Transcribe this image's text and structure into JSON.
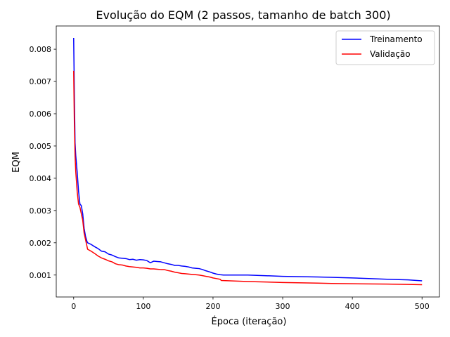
{
  "chart_data": {
    "type": "line",
    "title": "Evolução do EQM (2 passos, tamanho de batch 300)",
    "xlabel": "Época (iteração)",
    "ylabel": "EQM",
    "xlim": [
      -25,
      525
    ],
    "ylim": [
      0.00032,
      0.00872
    ],
    "xticks": [
      0,
      100,
      200,
      300,
      400,
      500
    ],
    "yticks": [
      0.001,
      0.002,
      0.003,
      0.004,
      0.005,
      0.006,
      0.007,
      0.008
    ],
    "ytick_labels": [
      "0.001",
      "0.002",
      "0.003",
      "0.004",
      "0.005",
      "0.006",
      "0.007",
      "0.008"
    ],
    "grid": false,
    "legend_position": "top-right",
    "series": [
      {
        "name": "Treinamento",
        "color": "#0000ff",
        "points": [
          [
            0,
            0.00835
          ],
          [
            1,
            0.0066
          ],
          [
            2,
            0.0051
          ],
          [
            3,
            0.0047
          ],
          [
            5,
            0.0042
          ],
          [
            7,
            0.0036
          ],
          [
            9,
            0.0032
          ],
          [
            11,
            0.00315
          ],
          [
            13,
            0.0029
          ],
          [
            15,
            0.00245
          ],
          [
            17,
            0.0022
          ],
          [
            19,
            0.00205
          ],
          [
            20,
            0.002
          ],
          [
            25,
            0.00195
          ],
          [
            30,
            0.00188
          ],
          [
            35,
            0.00182
          ],
          [
            40,
            0.00174
          ],
          [
            45,
            0.00172
          ],
          [
            50,
            0.00165
          ],
          [
            55,
            0.00162
          ],
          [
            60,
            0.00157
          ],
          [
            65,
            0.00153
          ],
          [
            70,
            0.00152
          ],
          [
            75,
            0.00151
          ],
          [
            80,
            0.00148
          ],
          [
            85,
            0.00149
          ],
          [
            90,
            0.00146
          ],
          [
            95,
            0.00148
          ],
          [
            100,
            0.00147
          ],
          [
            105,
            0.00145
          ],
          [
            110,
            0.00138
          ],
          [
            115,
            0.00143
          ],
          [
            120,
            0.00142
          ],
          [
            125,
            0.00141
          ],
          [
            130,
            0.00138
          ],
          [
            135,
            0.00135
          ],
          [
            140,
            0.00133
          ],
          [
            145,
            0.0013
          ],
          [
            150,
            0.0013
          ],
          [
            155,
            0.00128
          ],
          [
            160,
            0.00127
          ],
          [
            165,
            0.00125
          ],
          [
            170,
            0.00122
          ],
          [
            175,
            0.00121
          ],
          [
            180,
            0.0012
          ],
          [
            185,
            0.00117
          ],
          [
            190,
            0.00113
          ],
          [
            195,
            0.0011
          ],
          [
            200,
            0.00106
          ],
          [
            205,
            0.00103
          ],
          [
            210,
            0.00101
          ],
          [
            215,
            0.001
          ],
          [
            250,
            0.001
          ],
          [
            300,
            0.00096
          ],
          [
            350,
            0.00094
          ],
          [
            370,
            0.00093
          ],
          [
            400,
            0.00091
          ],
          [
            450,
            0.00087
          ],
          [
            480,
            0.00085
          ],
          [
            500,
            0.00082
          ]
        ]
      },
      {
        "name": "Validação",
        "color": "#ff0000",
        "points": [
          [
            0,
            0.00733
          ],
          [
            1,
            0.0057
          ],
          [
            2,
            0.0047
          ],
          [
            3,
            0.0042
          ],
          [
            5,
            0.0036
          ],
          [
            7,
            0.0032
          ],
          [
            9,
            0.0031
          ],
          [
            11,
            0.0029
          ],
          [
            13,
            0.0027
          ],
          [
            15,
            0.0023
          ],
          [
            17,
            0.0021
          ],
          [
            19,
            0.0019
          ],
          [
            20,
            0.0018
          ],
          [
            25,
            0.00174
          ],
          [
            30,
            0.00167
          ],
          [
            35,
            0.00159
          ],
          [
            40,
            0.00153
          ],
          [
            45,
            0.00149
          ],
          [
            50,
            0.00144
          ],
          [
            55,
            0.00141
          ],
          [
            60,
            0.00135
          ],
          [
            65,
            0.00132
          ],
          [
            70,
            0.00131
          ],
          [
            75,
            0.00128
          ],
          [
            80,
            0.00126
          ],
          [
            85,
            0.00125
          ],
          [
            90,
            0.00124
          ],
          [
            95,
            0.00122
          ],
          [
            100,
            0.00122
          ],
          [
            105,
            0.00121
          ],
          [
            110,
            0.00119
          ],
          [
            115,
            0.00119
          ],
          [
            120,
            0.00118
          ],
          [
            125,
            0.00117
          ],
          [
            130,
            0.00117
          ],
          [
            135,
            0.00114
          ],
          [
            140,
            0.00112
          ],
          [
            145,
            0.00109
          ],
          [
            150,
            0.00107
          ],
          [
            155,
            0.00105
          ],
          [
            160,
            0.00104
          ],
          [
            165,
            0.00103
          ],
          [
            170,
            0.00102
          ],
          [
            175,
            0.00101
          ],
          [
            180,
            0.001
          ],
          [
            185,
            0.00098
          ],
          [
            190,
            0.00096
          ],
          [
            195,
            0.00094
          ],
          [
            200,
            0.00091
          ],
          [
            205,
            0.00089
          ],
          [
            210,
            0.00087
          ],
          [
            212,
            0.00083
          ],
          [
            250,
            0.0008
          ],
          [
            300,
            0.00077
          ],
          [
            350,
            0.00075
          ],
          [
            370,
            0.00074
          ],
          [
            400,
            0.00073
          ],
          [
            450,
            0.00072
          ],
          [
            480,
            0.00071
          ],
          [
            500,
            0.0007
          ]
        ]
      }
    ]
  }
}
